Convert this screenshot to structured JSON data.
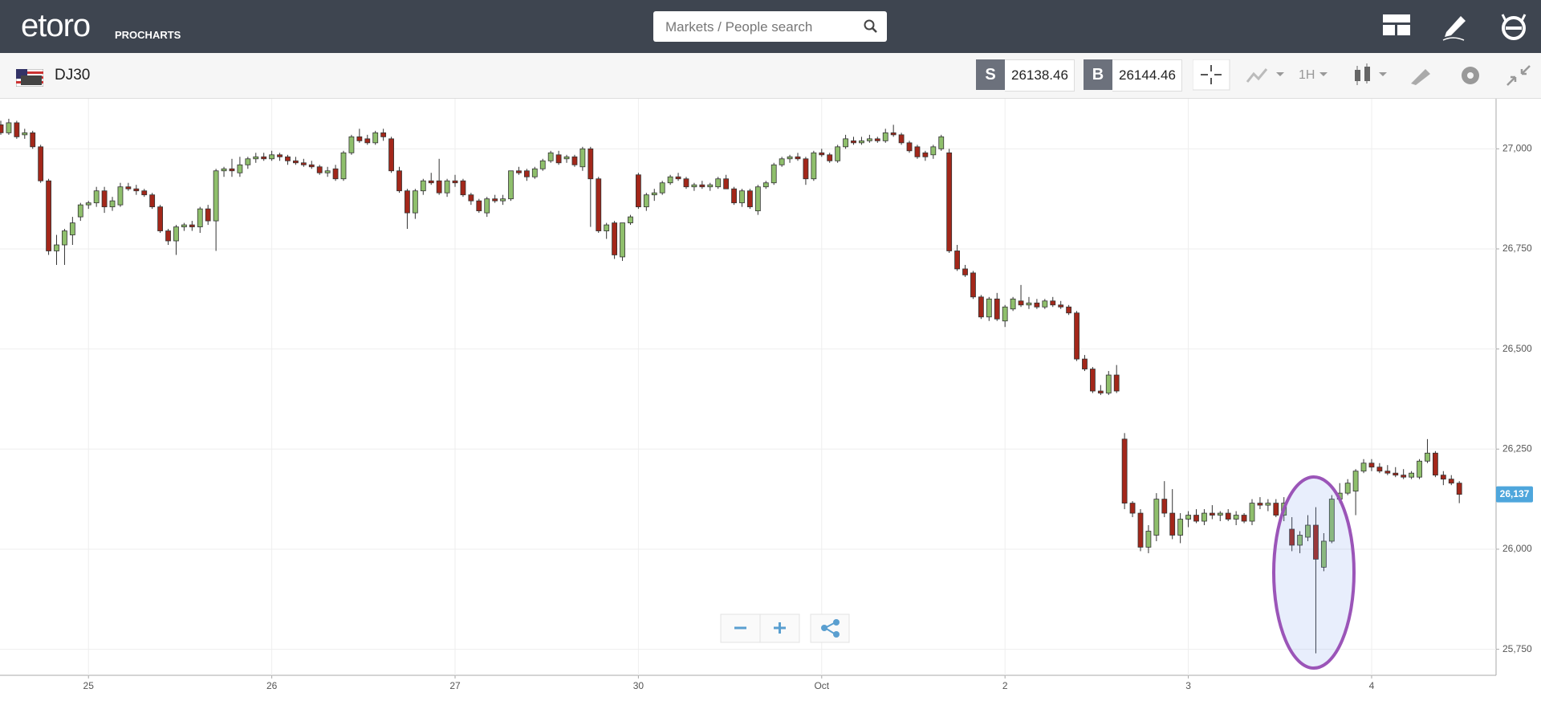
{
  "header": {
    "logo": "etoro",
    "product": "PROCHARTS",
    "search_placeholder": "Markets / People search"
  },
  "toolbar": {
    "instrument": "DJ30",
    "sell_label": "S",
    "sell_price": 26138.46,
    "buy_label": "B",
    "buy_price": 26144.46,
    "timeframe": "1H"
  },
  "chart_data": {
    "type": "candlestick",
    "categories": [
      null,
      null,
      null,
      null,
      null,
      null,
      null,
      null,
      null,
      null,
      null,
      "25",
      null,
      null,
      null,
      null,
      null,
      null,
      null,
      null,
      null,
      null,
      null,
      null,
      null,
      null,
      null,
      null,
      null,
      null,
      null,
      null,
      null,
      null,
      "26",
      null,
      null,
      null,
      null,
      null,
      null,
      null,
      null,
      null,
      null,
      null,
      null,
      null,
      null,
      null,
      null,
      null,
      null,
      null,
      null,
      null,
      null,
      "27",
      null,
      null,
      null,
      null,
      null,
      null,
      null,
      null,
      null,
      null,
      null,
      null,
      null,
      null,
      null,
      null,
      null,
      null,
      null,
      null,
      null,
      null,
      "30",
      null,
      null,
      null,
      null,
      null,
      null,
      null,
      null,
      null,
      null,
      null,
      null,
      null,
      null,
      null,
      null,
      null,
      null,
      null,
      null,
      null,
      null,
      "Oct",
      null,
      null,
      null,
      null,
      null,
      null,
      null,
      null,
      null,
      null,
      null,
      null,
      null,
      null,
      null,
      null,
      null,
      null,
      null,
      null,
      null,
      null,
      "2",
      null,
      null,
      null,
      null,
      null,
      null,
      null,
      null,
      null,
      null,
      null,
      null,
      null,
      null,
      null,
      null,
      null,
      null,
      null,
      null,
      null,
      null,
      "3",
      null,
      null,
      null,
      null,
      null,
      null,
      null,
      null,
      null,
      null,
      null,
      null,
      null,
      null,
      null,
      null,
      null,
      null,
      null,
      null,
      null,
      null,
      "4",
      null,
      null,
      null,
      null,
      null,
      null,
      null,
      null,
      null,
      null,
      null
    ],
    "ohlc": [
      [
        27060,
        27070,
        27035,
        27040
      ],
      [
        27040,
        27075,
        27035,
        27065
      ],
      [
        27065,
        27070,
        27025,
        27030
      ],
      [
        27035,
        27050,
        27025,
        27040
      ],
      [
        27040,
        27045,
        27000,
        27005
      ],
      [
        27005,
        27010,
        26915,
        26920
      ],
      [
        26920,
        26925,
        26735,
        26745
      ],
      [
        26745,
        26785,
        26710,
        26760
      ],
      [
        26760,
        26800,
        26710,
        26795
      ],
      [
        26785,
        26830,
        26760,
        26815
      ],
      [
        26830,
        26865,
        26820,
        26860
      ],
      [
        26860,
        26870,
        26850,
        26865
      ],
      [
        26865,
        26905,
        26855,
        26895
      ],
      [
        26895,
        26905,
        26840,
        26855
      ],
      [
        26855,
        26880,
        26845,
        26870
      ],
      [
        26860,
        26915,
        26855,
        26905
      ],
      [
        26905,
        26915,
        26895,
        26900
      ],
      [
        26900,
        26910,
        26885,
        26895
      ],
      [
        26895,
        26900,
        26880,
        26885
      ],
      [
        26885,
        26890,
        26850,
        26855
      ],
      [
        26855,
        26860,
        26790,
        26795
      ],
      [
        26795,
        26800,
        26760,
        26770
      ],
      [
        26770,
        26810,
        26735,
        26805
      ],
      [
        26805,
        26815,
        26795,
        26810
      ],
      [
        26810,
        26820,
        26795,
        26805
      ],
      [
        26805,
        26855,
        26790,
        26850
      ],
      [
        26850,
        26860,
        26810,
        26820
      ],
      [
        26820,
        26950,
        26745,
        26945
      ],
      [
        26945,
        26955,
        26930,
        26950
      ],
      [
        26950,
        26975,
        26930,
        26945
      ],
      [
        26940,
        26980,
        26930,
        26960
      ],
      [
        26960,
        26980,
        26950,
        26975
      ],
      [
        26975,
        26990,
        26965,
        26980
      ],
      [
        26980,
        26990,
        26970,
        26975
      ],
      [
        26975,
        26995,
        26970,
        26985
      ],
      [
        26985,
        26990,
        26970,
        26980
      ],
      [
        26980,
        26985,
        26960,
        26970
      ],
      [
        26970,
        26980,
        26960,
        26965
      ],
      [
        26965,
        26975,
        26955,
        26960
      ],
      [
        26960,
        26970,
        26950,
        26955
      ],
      [
        26955,
        26960,
        26935,
        26940
      ],
      [
        26940,
        26955,
        26930,
        26945
      ],
      [
        26950,
        26960,
        26920,
        26925
      ],
      [
        26925,
        26995,
        26920,
        26990
      ],
      [
        26990,
        27035,
        26985,
        27030
      ],
      [
        27030,
        27050,
        27015,
        27020
      ],
      [
        27025,
        27035,
        27010,
        27015
      ],
      [
        27015,
        27045,
        27010,
        27040
      ],
      [
        27040,
        27050,
        27020,
        27030
      ],
      [
        27025,
        27030,
        26940,
        26945
      ],
      [
        26945,
        26955,
        26890,
        26895
      ],
      [
        26895,
        26900,
        26800,
        26840
      ],
      [
        26840,
        26900,
        26825,
        26895
      ],
      [
        26895,
        26925,
        26885,
        26920
      ],
      [
        26920,
        26940,
        26910,
        26915
      ],
      [
        26920,
        26975,
        26885,
        26890
      ],
      [
        26890,
        26925,
        26880,
        26920
      ],
      [
        26920,
        26935,
        26905,
        26915
      ],
      [
        26920,
        26925,
        26880,
        26885
      ],
      [
        26885,
        26890,
        26860,
        26870
      ],
      [
        26870,
        26875,
        26840,
        26845
      ],
      [
        26840,
        26880,
        26830,
        26875
      ],
      [
        26875,
        26885,
        26865,
        26870
      ],
      [
        26870,
        26885,
        26860,
        26875
      ],
      [
        26875,
        26945,
        26870,
        26945
      ],
      [
        26945,
        26955,
        26935,
        26940
      ],
      [
        26945,
        26950,
        26920,
        26930
      ],
      [
        26930,
        26955,
        26925,
        26950
      ],
      [
        26950,
        26975,
        26945,
        26970
      ],
      [
        26970,
        26995,
        26965,
        26990
      ],
      [
        26985,
        26995,
        26960,
        26965
      ],
      [
        26975,
        26985,
        26965,
        26980
      ],
      [
        26980,
        26985,
        26955,
        26960
      ],
      [
        26955,
        27005,
        26945,
        27000
      ],
      [
        27000,
        27005,
        26805,
        26925
      ],
      [
        26925,
        26930,
        26790,
        26795
      ],
      [
        26795,
        26815,
        26775,
        26810
      ],
      [
        26815,
        26820,
        26725,
        26735
      ],
      [
        26730,
        26815,
        26720,
        26815
      ],
      [
        26815,
        26835,
        26810,
        26830
      ],
      [
        26935,
        26940,
        26850,
        26855
      ],
      [
        26855,
        26890,
        26845,
        26885
      ],
      [
        26885,
        26900,
        26870,
        26890
      ],
      [
        26890,
        26920,
        26885,
        26915
      ],
      [
        26915,
        26935,
        26910,
        26930
      ],
      [
        26930,
        26940,
        26920,
        26925
      ],
      [
        26925,
        26930,
        26900,
        26905
      ],
      [
        26905,
        26915,
        26895,
        26910
      ],
      [
        26910,
        26920,
        26900,
        26905
      ],
      [
        26905,
        26915,
        26895,
        26910
      ],
      [
        26905,
        26930,
        26900,
        26925
      ],
      [
        26925,
        26935,
        26900,
        26900
      ],
      [
        26900,
        26905,
        26860,
        26865
      ],
      [
        26865,
        26900,
        26855,
        26895
      ],
      [
        26895,
        26900,
        26850,
        26855
      ],
      [
        26845,
        26910,
        26835,
        26905
      ],
      [
        26905,
        26920,
        26900,
        26915
      ],
      [
        26915,
        26965,
        26910,
        26960
      ],
      [
        26960,
        26980,
        26955,
        26975
      ],
      [
        26975,
        26985,
        26965,
        26980
      ],
      [
        26980,
        26990,
        26970,
        26975
      ],
      [
        26975,
        26980,
        26910,
        26925
      ],
      [
        26925,
        26995,
        26920,
        26990
      ],
      [
        26990,
        27000,
        26980,
        26985
      ],
      [
        26985,
        26990,
        26965,
        26970
      ],
      [
        26970,
        27010,
        26965,
        27005
      ],
      [
        27005,
        27035,
        27000,
        27025
      ],
      [
        27020,
        27030,
        27010,
        27015
      ],
      [
        27015,
        27030,
        27010,
        27020
      ],
      [
        27020,
        27035,
        27015,
        27025
      ],
      [
        27025,
        27030,
        27015,
        27020
      ],
      [
        27020,
        27050,
        27015,
        27040
      ],
      [
        27040,
        27060,
        27030,
        27035
      ],
      [
        27035,
        27040,
        27010,
        27015
      ],
      [
        27015,
        27020,
        26990,
        26995
      ],
      [
        27005,
        27010,
        26975,
        26980
      ],
      [
        26990,
        26995,
        26970,
        26980
      ],
      [
        26985,
        27010,
        26975,
        27005
      ],
      [
        27000,
        27035,
        26995,
        27030
      ],
      [
        26990,
        27000,
        26740,
        26745
      ],
      [
        26745,
        26760,
        26695,
        26700
      ],
      [
        26700,
        26710,
        26680,
        26685
      ],
      [
        26690,
        26695,
        26625,
        26630
      ],
      [
        26630,
        26635,
        26575,
        26580
      ],
      [
        26580,
        26630,
        26570,
        26625
      ],
      [
        26625,
        26640,
        26570,
        26575
      ],
      [
        26570,
        26610,
        26555,
        26605
      ],
      [
        26600,
        26630,
        26595,
        26625
      ],
      [
        26620,
        26660,
        26605,
        26610
      ],
      [
        26610,
        26630,
        26600,
        26615
      ],
      [
        26615,
        26625,
        26600,
        26605
      ],
      [
        26605,
        26625,
        26600,
        26620
      ],
      [
        26620,
        26630,
        26605,
        26610
      ],
      [
        26610,
        26620,
        26600,
        26605
      ],
      [
        26605,
        26610,
        26585,
        26590
      ],
      [
        26590,
        26595,
        26470,
        26475
      ],
      [
        26475,
        26485,
        26445,
        26450
      ],
      [
        26450,
        26455,
        26390,
        26395
      ],
      [
        26395,
        26410,
        26385,
        26390
      ],
      [
        26390,
        26445,
        26385,
        26435
      ],
      [
        26435,
        26460,
        26390,
        26395
      ],
      [
        26275,
        26290,
        26100,
        26115
      ],
      [
        26115,
        26120,
        26080,
        26090
      ],
      [
        26090,
        26100,
        25995,
        26005
      ],
      [
        26005,
        26060,
        25990,
        26045
      ],
      [
        26035,
        26140,
        26020,
        26125
      ],
      [
        26125,
        26170,
        26080,
        26090
      ],
      [
        26090,
        26150,
        26025,
        26035
      ],
      [
        26035,
        26090,
        26015,
        26075
      ],
      [
        26075,
        26095,
        26055,
        26085
      ],
      [
        26085,
        26100,
        26065,
        26070
      ],
      [
        26070,
        26100,
        26060,
        26090
      ],
      [
        26090,
        26110,
        26075,
        26085
      ],
      [
        26085,
        26095,
        26070,
        26090
      ],
      [
        26090,
        26100,
        26070,
        26075
      ],
      [
        26075,
        26095,
        26060,
        26085
      ],
      [
        26085,
        26090,
        26065,
        26070
      ],
      [
        26070,
        26125,
        26060,
        26115
      ],
      [
        26115,
        26130,
        26100,
        26110
      ],
      [
        26110,
        26125,
        26095,
        26115
      ],
      [
        26115,
        26125,
        26080,
        26085
      ],
      [
        26085,
        26130,
        26070,
        26115
      ],
      [
        26050,
        26080,
        25995,
        26010
      ],
      [
        26010,
        26045,
        25990,
        26035
      ],
      [
        26030,
        26085,
        26020,
        26060
      ],
      [
        26060,
        26105,
        25740,
        25975
      ],
      [
        25955,
        26040,
        25945,
        26020
      ],
      [
        26020,
        26135,
        26015,
        26125
      ],
      [
        26125,
        26165,
        26115,
        26140
      ],
      [
        26140,
        26175,
        26135,
        26165
      ],
      [
        26145,
        26200,
        26085,
        26195
      ],
      [
        26195,
        26225,
        26190,
        26215
      ],
      [
        26215,
        26225,
        26195,
        26205
      ],
      [
        26205,
        26215,
        26190,
        26195
      ],
      [
        26195,
        26210,
        26185,
        26190
      ],
      [
        26190,
        26205,
        26180,
        26185
      ],
      [
        26185,
        26200,
        26175,
        26180
      ],
      [
        26180,
        26195,
        26175,
        26190
      ],
      [
        26180,
        26225,
        26175,
        26220
      ],
      [
        26220,
        26275,
        26215,
        26240
      ],
      [
        26240,
        26245,
        26180,
        26185
      ],
      [
        26185,
        26195,
        26160,
        26175
      ],
      [
        26175,
        26185,
        26160,
        26165
      ],
      [
        26165,
        26170,
        26115,
        26137
      ]
    ],
    "ylim": [
      25685,
      27125
    ],
    "yticks": [
      {
        "value": 25750,
        "label": "25,750"
      },
      {
        "value": 26000,
        "label": "26,000"
      },
      {
        "value": 26250,
        "label": "26,250"
      },
      {
        "value": 26500,
        "label": "26,500"
      },
      {
        "value": 26750,
        "label": "26,750"
      },
      {
        "value": 27000,
        "label": "27,000"
      }
    ],
    "grid": true,
    "up_color": "#8fbf6c",
    "down_color": "#a3271a",
    "current_price": {
      "value": 26137,
      "label": "26,137"
    }
  }
}
